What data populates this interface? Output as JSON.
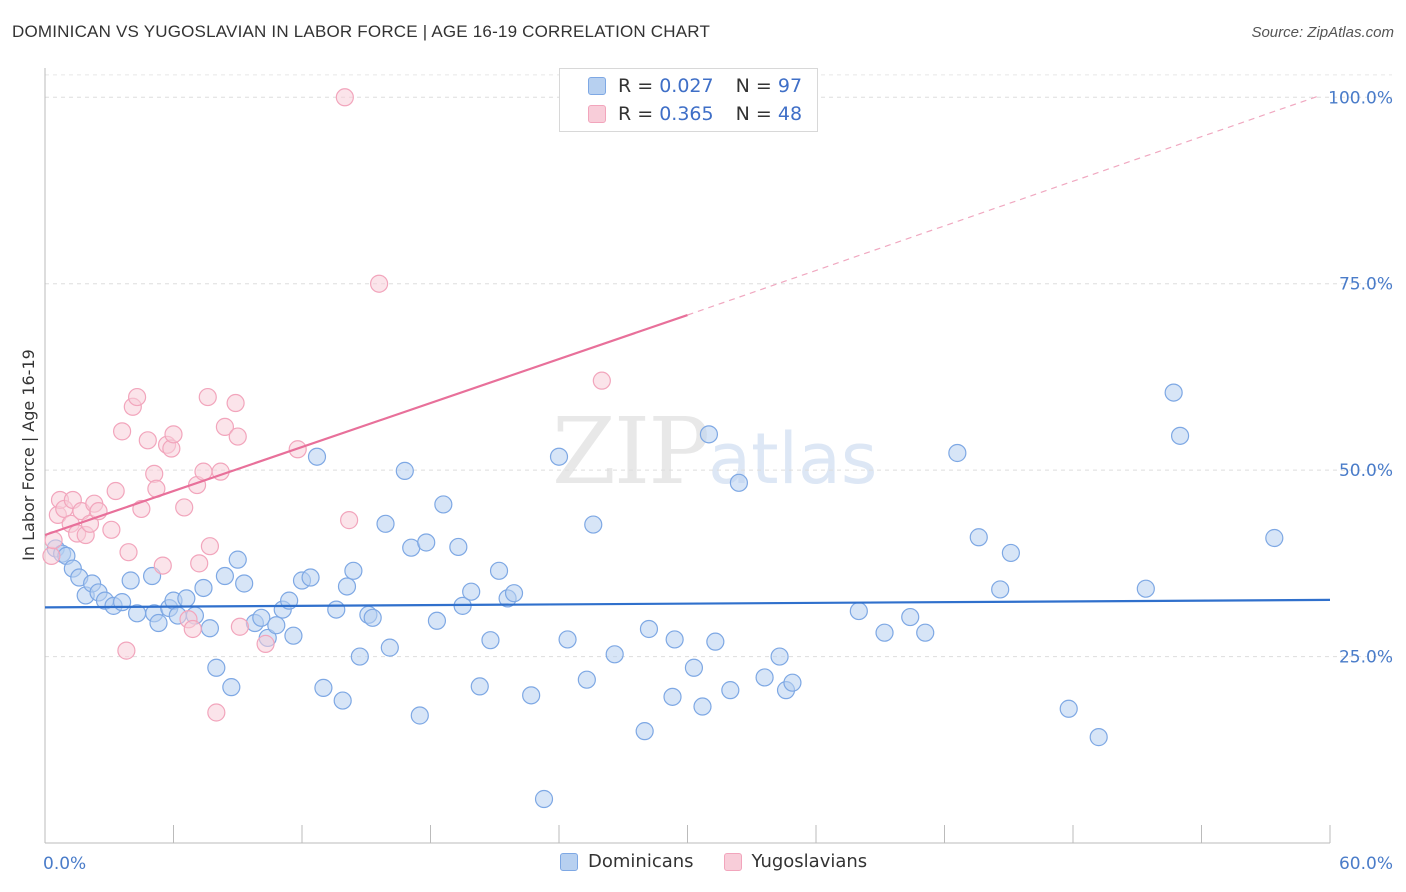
{
  "header": {
    "title": "DOMINICAN VS YUGOSLAVIAN IN LABOR FORCE | AGE 16-19 CORRELATION CHART",
    "source": "Source: ZipAtlas.com"
  },
  "watermark": {
    "zip": "ZIP",
    "atlas": "atlas"
  },
  "legend": {
    "r_label": "R =",
    "n_label": "N =",
    "series": [
      {
        "r": "0.027",
        "n": "97"
      },
      {
        "r": "0.365",
        "n": "48"
      }
    ]
  },
  "chart_data": {
    "type": "scatter",
    "title": "DOMINICAN VS YUGOSLAVIAN IN LABOR FORCE | AGE 16-19 CORRELATION CHART",
    "xlabel": "",
    "ylabel": "In Labor Force | Age 16-19",
    "xlim": [
      0,
      60
    ],
    "ylim": [
      0,
      105
    ],
    "x_tick_labels": [
      "0.0%",
      "60.0%"
    ],
    "y_ticks": [
      25,
      50,
      75,
      100
    ],
    "y_tick_labels": [
      "25.0%",
      "50.0%",
      "75.0%",
      "100.0%"
    ],
    "grid": true,
    "legend_position": "top-center",
    "series": [
      {
        "name": "Dominicans",
        "color": "#7ea8e4",
        "fill": "#b7d0f0",
        "trend_color": "#3070cc",
        "trend": {
          "x0": 0,
          "y0": 31.6,
          "x1": 60,
          "y1": 32.6
        },
        "points": [
          [
            0.5,
            39.5
          ],
          [
            0.8,
            38.8
          ],
          [
            1.0,
            38.5
          ],
          [
            1.3,
            36.8
          ],
          [
            1.6,
            35.6
          ],
          [
            1.9,
            33.2
          ],
          [
            2.2,
            34.8
          ],
          [
            2.5,
            33.6
          ],
          [
            2.8,
            32.5
          ],
          [
            3.2,
            31.8
          ],
          [
            3.6,
            32.3
          ],
          [
            4.0,
            35.2
          ],
          [
            4.3,
            30.8
          ],
          [
            5.0,
            35.8
          ],
          [
            5.1,
            30.8
          ],
          [
            5.3,
            29.5
          ],
          [
            5.8,
            31.5
          ],
          [
            6.0,
            32.5
          ],
          [
            6.2,
            30.5
          ],
          [
            6.6,
            32.8
          ],
          [
            7.0,
            30.5
          ],
          [
            7.4,
            34.2
          ],
          [
            7.7,
            28.8
          ],
          [
            8.0,
            23.5
          ],
          [
            8.4,
            35.8
          ],
          [
            8.7,
            20.9
          ],
          [
            9.0,
            38.0
          ],
          [
            9.3,
            34.8
          ],
          [
            9.8,
            29.5
          ],
          [
            10.1,
            30.2
          ],
          [
            10.4,
            27.5
          ],
          [
            10.8,
            29.2
          ],
          [
            11.1,
            31.3
          ],
          [
            11.4,
            32.5
          ],
          [
            11.6,
            27.8
          ],
          [
            12.0,
            35.2
          ],
          [
            12.4,
            35.6
          ],
          [
            12.7,
            51.8
          ],
          [
            13.0,
            20.8
          ],
          [
            13.6,
            31.3
          ],
          [
            13.9,
            19.1
          ],
          [
            14.1,
            34.4
          ],
          [
            14.4,
            36.5
          ],
          [
            14.7,
            25.0
          ],
          [
            15.1,
            30.6
          ],
          [
            15.3,
            30.2
          ],
          [
            15.9,
            42.8
          ],
          [
            16.1,
            26.2
          ],
          [
            16.8,
            49.9
          ],
          [
            17.1,
            39.6
          ],
          [
            17.5,
            17.1
          ],
          [
            17.8,
            40.3
          ],
          [
            18.3,
            29.8
          ],
          [
            18.6,
            45.4
          ],
          [
            19.3,
            39.7
          ],
          [
            19.5,
            31.8
          ],
          [
            19.9,
            33.7
          ],
          [
            20.3,
            21.0
          ],
          [
            20.8,
            27.2
          ],
          [
            21.2,
            36.5
          ],
          [
            21.6,
            32.8
          ],
          [
            21.9,
            33.5
          ],
          [
            22.7,
            19.8
          ],
          [
            23.3,
            5.9
          ],
          [
            24.4,
            27.3
          ],
          [
            24.0,
            51.8
          ],
          [
            25.3,
            21.9
          ],
          [
            25.6,
            42.7
          ],
          [
            26.6,
            25.3
          ],
          [
            28.0,
            15.0
          ],
          [
            28.2,
            28.7
          ],
          [
            29.3,
            19.6
          ],
          [
            29.4,
            27.3
          ],
          [
            30.3,
            23.5
          ],
          [
            30.7,
            18.3
          ],
          [
            31.0,
            54.8
          ],
          [
            31.3,
            27.0
          ],
          [
            32.0,
            20.5
          ],
          [
            32.4,
            48.3
          ],
          [
            33.6,
            22.2
          ],
          [
            34.3,
            25.0
          ],
          [
            34.6,
            20.5
          ],
          [
            34.9,
            21.5
          ],
          [
            38.0,
            31.1
          ],
          [
            39.2,
            28.2
          ],
          [
            40.4,
            30.3
          ],
          [
            41.1,
            28.2
          ],
          [
            42.6,
            52.3
          ],
          [
            43.6,
            41.0
          ],
          [
            44.6,
            34.0
          ],
          [
            45.1,
            38.9
          ],
          [
            47.8,
            18.0
          ],
          [
            49.2,
            14.2
          ],
          [
            51.4,
            34.1
          ],
          [
            52.7,
            60.4
          ],
          [
            53.0,
            54.6
          ],
          [
            57.4,
            40.9
          ]
        ]
      },
      {
        "name": "Yugoslavians",
        "color": "#f2a5bc",
        "fill": "#f8cdd9",
        "trend_color": "#e8709a",
        "trend": {
          "x0": 0,
          "y0": 41.3,
          "x1": 30,
          "y1": 70.8,
          "dash_to_x": 59.5,
          "dash_to_y": 100.2
        },
        "points": [
          [
            0.3,
            38.5
          ],
          [
            0.4,
            40.6
          ],
          [
            0.6,
            44.0
          ],
          [
            0.7,
            46.0
          ],
          [
            0.9,
            44.8
          ],
          [
            1.2,
            42.8
          ],
          [
            1.3,
            46.0
          ],
          [
            1.5,
            41.5
          ],
          [
            1.7,
            44.5
          ],
          [
            1.9,
            41.3
          ],
          [
            2.1,
            42.8
          ],
          [
            2.3,
            45.5
          ],
          [
            2.5,
            44.5
          ],
          [
            3.1,
            42.0
          ],
          [
            3.3,
            47.2
          ],
          [
            3.6,
            55.2
          ],
          [
            3.8,
            25.8
          ],
          [
            3.9,
            39.0
          ],
          [
            4.1,
            58.5
          ],
          [
            4.3,
            59.8
          ],
          [
            4.5,
            44.8
          ],
          [
            4.8,
            54.0
          ],
          [
            5.1,
            49.5
          ],
          [
            5.2,
            47.5
          ],
          [
            5.5,
            37.2
          ],
          [
            5.7,
            53.4
          ],
          [
            5.9,
            52.9
          ],
          [
            6.0,
            54.8
          ],
          [
            6.5,
            45.0
          ],
          [
            6.7,
            30.0
          ],
          [
            6.9,
            28.7
          ],
          [
            7.1,
            48.0
          ],
          [
            7.2,
            37.5
          ],
          [
            7.4,
            49.8
          ],
          [
            7.6,
            59.8
          ],
          [
            7.7,
            39.8
          ],
          [
            8.0,
            17.5
          ],
          [
            8.2,
            49.8
          ],
          [
            8.4,
            55.8
          ],
          [
            8.9,
            59.0
          ],
          [
            9.0,
            54.5
          ],
          [
            9.1,
            29.0
          ],
          [
            10.3,
            26.7
          ],
          [
            11.8,
            52.8
          ],
          [
            14.2,
            43.3
          ],
          [
            14.0,
            100.0
          ],
          [
            15.6,
            75.0
          ],
          [
            26.0,
            62.0
          ]
        ]
      }
    ]
  }
}
